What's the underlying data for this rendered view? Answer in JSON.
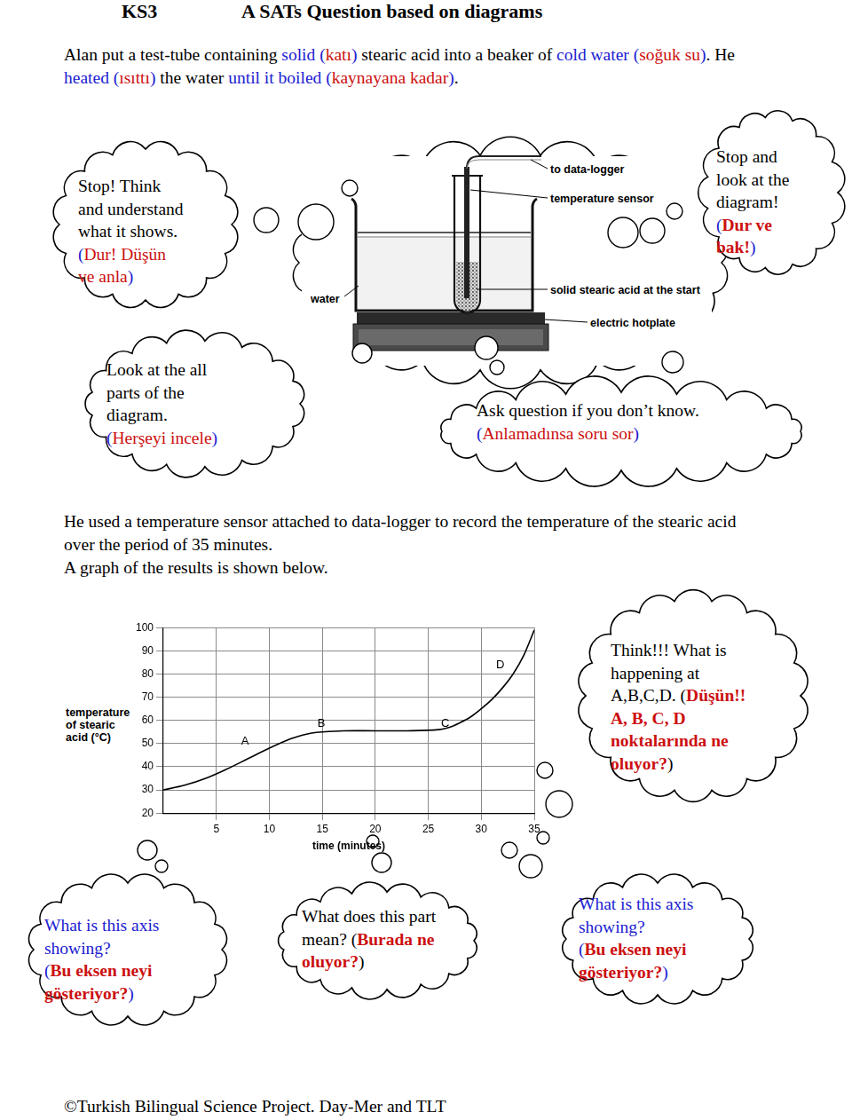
{
  "header": {
    "level": "KS3",
    "title": "A SATs Question based on diagrams"
  },
  "intro": [
    [
      {
        "text": "Alan put a test-tube containing "
      },
      {
        "text": "solid",
        "color": "#2020d0"
      },
      {
        "text": " (",
        "color": "#2020d0"
      },
      {
        "text": "katı",
        "color": "#cc1010"
      },
      {
        "text": ")",
        "color": "#2020d0"
      },
      {
        "text": " stearic acid into a beaker of "
      },
      {
        "text": "cold water",
        "color": "#2020d0"
      },
      {
        "text": " (",
        "color": "#2020d0"
      },
      {
        "text": "soğuk su",
        "color": "#cc1010"
      },
      {
        "text": ")",
        "color": "#2020d0"
      },
      {
        "text": ". He"
      }
    ],
    [
      {
        "text": "heated",
        "color": "#2020d0"
      },
      {
        "text": " (",
        "color": "#2020d0"
      },
      {
        "text": "ısıttı",
        "color": "#cc1010"
      },
      {
        "text": ")",
        "color": "#2020d0"
      },
      {
        "text": " the water "
      },
      {
        "text": "until it boiled",
        "color": "#2020d0"
      },
      {
        "text": " (",
        "color": "#2020d0"
      },
      {
        "text": "kaynayana kadar",
        "color": "#cc1010"
      },
      {
        "text": ")",
        "color": "#2020d0"
      },
      {
        "text": "."
      }
    ]
  ],
  "diagram": {
    "labels": {
      "data_logger": "to data-logger",
      "sensor": "temperature sensor",
      "acid": "solid stearic acid at the start",
      "water": "water",
      "hotplate": "electric hotplate"
    }
  },
  "bubbles": [
    {
      "lines": [
        [
          {
            "text": "Stop! Think"
          }
        ],
        [
          {
            "text": "and understand"
          }
        ],
        [
          {
            "text": "what it shows."
          }
        ],
        [
          {
            "text": "(",
            "color": "#2020d0"
          },
          {
            "text": "Dur! Düşün",
            "color": "#cc1010"
          }
        ],
        [
          {
            "text": "ve anla",
            "color": "#cc1010"
          },
          {
            "text": ")",
            "color": "#2020d0"
          }
        ]
      ]
    },
    {
      "lines": [
        [
          {
            "text": "Stop and"
          }
        ],
        [
          {
            "text": "look at the"
          }
        ],
        [
          {
            "text": "diagram!"
          }
        ],
        [
          {
            "text": "(",
            "color": "#2020d0"
          },
          {
            "text": "Dur ve",
            "color": "#cc1010",
            "bold": true
          }
        ],
        [
          {
            "text": "bak!",
            "color": "#cc1010",
            "bold": true
          },
          {
            "text": ")",
            "color": "#2020d0"
          }
        ]
      ]
    },
    {
      "lines": [
        [
          {
            "text": "Look at the all"
          }
        ],
        [
          {
            "text": "parts of the"
          }
        ],
        [
          {
            "text": "diagram."
          }
        ],
        [
          {
            "text": "(",
            "color": "#2020d0"
          },
          {
            "text": "Herşeyi incele",
            "color": "#cc1010"
          },
          {
            "text": ")",
            "color": "#2020d0"
          }
        ]
      ]
    },
    {
      "lines": [
        [
          {
            "text": "Ask question if you don’t know."
          }
        ],
        [
          {
            "text": "(",
            "color": "#2020d0"
          },
          {
            "text": "Anlamadınsa soru sor",
            "color": "#cc1010"
          },
          {
            "text": ")",
            "color": "#2020d0"
          }
        ]
      ]
    },
    {
      "lines": [
        [
          {
            "text": "Think!!! What is"
          }
        ],
        [
          {
            "text": "happening at"
          }
        ],
        [
          {
            "text": "A,B,C,D. ("
          },
          {
            "text": "Düşün!!",
            "color": "#cc1010",
            "bold": true
          }
        ],
        [
          {
            "text": "A, B, C, D",
            "color": "#cc1010",
            "bold": true
          }
        ],
        [
          {
            "text": "noktalarında ne",
            "color": "#cc1010",
            "bold": true
          }
        ],
        [
          {
            "text": "oluyor?",
            "color": "#cc1010",
            "bold": true
          },
          {
            "text": ")"
          }
        ]
      ]
    },
    {
      "lines": [
        [
          {
            "text": "What is this axis",
            "color": "#2020d0"
          }
        ],
        [
          {
            "text": "showing?",
            "color": "#2020d0"
          }
        ],
        [
          {
            "text": "(",
            "color": "#2020d0"
          },
          {
            "text": "Bu eksen neyi",
            "color": "#cc1010",
            "bold": true
          }
        ],
        [
          {
            "text": "gösteriyor?",
            "color": "#cc1010",
            "bold": true
          },
          {
            "text": ")",
            "color": "#2020d0"
          }
        ]
      ]
    },
    {
      "lines": [
        [
          {
            "text": "What does this part"
          }
        ],
        [
          {
            "text": "mean? ("
          },
          {
            "text": "Burada ne",
            "color": "#cc1010",
            "bold": true
          }
        ],
        [
          {
            "text": "oluyor?",
            "color": "#cc1010",
            "bold": true
          },
          {
            "text": ")"
          }
        ]
      ]
    },
    {
      "lines": [
        [
          {
            "text": "What is this axis",
            "color": "#2020d0"
          }
        ],
        [
          {
            "text": "showing?",
            "color": "#2020d0"
          }
        ],
        [
          {
            "text": "(",
            "color": "#2020d0"
          },
          {
            "text": "Bu eksen neyi",
            "color": "#cc1010",
            "bold": true
          }
        ],
        [
          {
            "text": "gösteriyor?",
            "color": "#cc1010",
            "bold": true
          },
          {
            "text": ")",
            "color": "#2020d0"
          }
        ]
      ]
    }
  ],
  "text": [
    "He used a temperature sensor attached to data-logger to record the temperature of the stearic acid",
    "over the period of 35 minutes.",
    "A graph of the results is shown below."
  ],
  "chart_data": {
    "type": "line",
    "xlabel": "time (minutes)",
    "ylabel": [
      "temperature",
      "of stearic",
      "acid (°C)"
    ],
    "x": [
      0,
      2,
      4,
      6,
      8,
      10,
      12,
      13,
      14,
      15,
      17,
      20,
      23,
      26,
      27,
      28,
      29,
      30,
      31,
      32,
      33,
      34,
      35
    ],
    "values": [
      30,
      32,
      35,
      39,
      43.5,
      48,
      52,
      53.5,
      54.5,
      55,
      55.5,
      55.5,
      55.5,
      56,
      57,
      59,
      61.5,
      65,
      69,
      74,
      80,
      88,
      99
    ],
    "color": "#000000",
    "xlim": [
      0,
      35
    ],
    "xticks": [
      5,
      10,
      15,
      20,
      25,
      30,
      35
    ],
    "ylim": [
      20,
      100
    ],
    "yticks": [
      20,
      30,
      40,
      50,
      60,
      70,
      80,
      90,
      100
    ],
    "grid": true,
    "annotations": [
      {
        "text": "A",
        "x": 7.7,
        "y": 51
      },
      {
        "text": "B",
        "x": 14.9,
        "y": 58.5
      },
      {
        "text": "C",
        "x": 26.6,
        "y": 58.5
      },
      {
        "text": "D",
        "x": 31.8,
        "y": 84
      }
    ]
  },
  "footer": "©Turkish Bilingual Science Project. Day-Mer and TLT"
}
